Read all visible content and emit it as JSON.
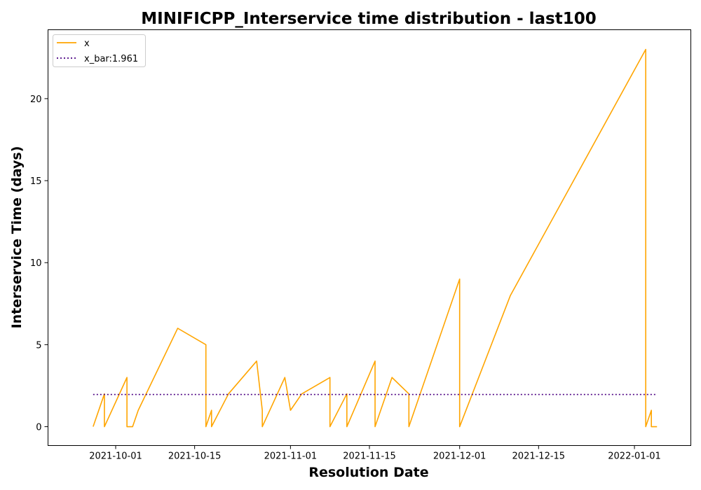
{
  "chart_data": {
    "type": "line",
    "title": "MINIFICPP_Interservice time distribution - last100",
    "xlabel": "Resolution Date",
    "ylabel": "Interservice Time (days)",
    "x_tick_labels": [
      "2021-10-01",
      "2021-10-15",
      "2021-11-01",
      "2021-11-15",
      "2021-12-01",
      "2021-12-15",
      "2022-01-01"
    ],
    "y_tick_labels": [
      "0",
      "5",
      "10",
      "15",
      "20"
    ],
    "ylim": [
      -1.15,
      24.2
    ],
    "xlim": [
      "2021-09-19",
      "2022-01-11"
    ],
    "grid": false,
    "legend_position": "top-left",
    "series": [
      {
        "name": "x",
        "color": "#ffa500",
        "style": "solid",
        "x": [
          "2021-09-27",
          "2021-09-29",
          "2021-09-29",
          "2021-10-03",
          "2021-10-03",
          "2021-10-04",
          "2021-10-05",
          "2021-10-12",
          "2021-10-17",
          "2021-10-17",
          "2021-10-18",
          "2021-10-18",
          "2021-10-21",
          "2021-10-26",
          "2021-10-27",
          "2021-10-27",
          "2021-10-31",
          "2021-11-01",
          "2021-11-03",
          "2021-11-08",
          "2021-11-08",
          "2021-11-11",
          "2021-11-11",
          "2021-11-16",
          "2021-11-16",
          "2021-11-19",
          "2021-11-22",
          "2021-11-22",
          "2021-12-01",
          "2021-12-01",
          "2021-12-10",
          "2022-01-03",
          "2022-01-03",
          "2022-01-04",
          "2022-01-04",
          "2022-01-05"
        ],
        "values": [
          0,
          2,
          0,
          3,
          0,
          0,
          1,
          6,
          5,
          0,
          1,
          0,
          2,
          4,
          1,
          0,
          3,
          1,
          2,
          3,
          0,
          2,
          0,
          4,
          0,
          3,
          2,
          0,
          9,
          0,
          8,
          23,
          0,
          1,
          0,
          0
        ]
      },
      {
        "name": "x_bar:1.961",
        "color": "#4b0082",
        "style": "dotted",
        "x": [
          "2021-09-27",
          "2022-01-05"
        ],
        "values": [
          1.961,
          1.961
        ]
      }
    ]
  }
}
